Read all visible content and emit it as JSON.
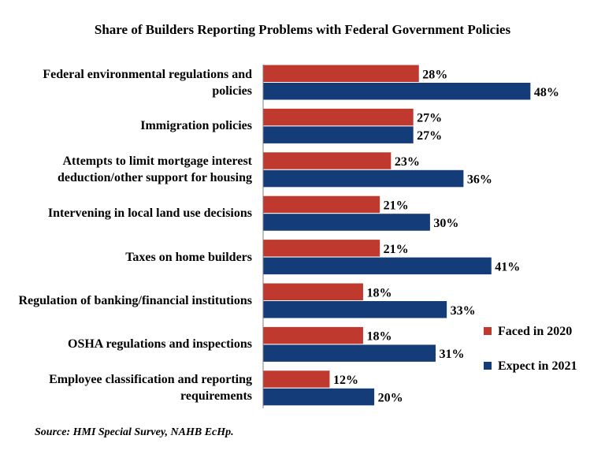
{
  "chart_data": {
    "type": "bar",
    "orientation": "horizontal",
    "title": "Share of Builders Reporting Problems with Federal Government Policies",
    "categories": [
      "Federal environmental regulations and policies",
      "Immigration policies",
      "Attempts to limit mortgage interest deduction/other support for housing",
      "Intervening in local land use decisions",
      "Taxes on home builders",
      "Regulation of banking/financial institutions",
      "OSHA regulations and inspections",
      "Employee classification and reporting requirements"
    ],
    "series": [
      {
        "name": "Faced in 2020",
        "color": "#C0392E",
        "values": [
          28,
          27,
          23,
          21,
          21,
          18,
          18,
          12
        ]
      },
      {
        "name": "Expect in 2021",
        "color": "#143C78",
        "values": [
          48,
          27,
          36,
          30,
          41,
          33,
          31,
          20
        ]
      }
    ],
    "value_suffix": "%",
    "xlim": [
      0,
      60
    ],
    "grid": false,
    "legend_position": "right"
  },
  "source": "Source: HMI Special Survey, NAHB EcHp."
}
